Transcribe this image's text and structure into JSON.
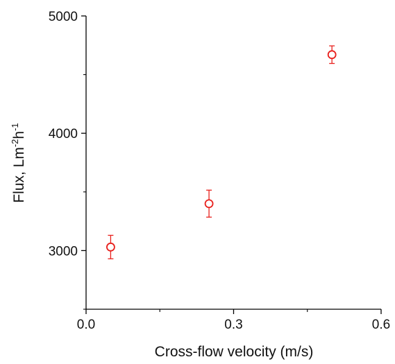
{
  "chart_data": {
    "type": "scatter",
    "xlabel": "Cross-flow velocity (m/s)",
    "ylabel": {
      "text": "Flux,  Lm",
      "sup1": "-2",
      "mid": "h",
      "sup2": "-1"
    },
    "xlim": [
      0.0,
      0.6
    ],
    "ylim": [
      2500,
      5000
    ],
    "x_ticks": [
      0.0,
      0.3,
      0.6
    ],
    "x_tick_labels": [
      "0.0",
      "0.3",
      "0.6"
    ],
    "x_minor_ticks": [
      0.15,
      0.45
    ],
    "y_ticks": [
      3000,
      4000,
      5000
    ],
    "y_tick_labels": [
      "3000",
      "4000",
      "5000"
    ],
    "y_minor_ticks": [
      2500,
      3500,
      4500
    ],
    "grid": false,
    "marker": "open-circle",
    "color": "#e8201c",
    "series": [
      {
        "points": [
          {
            "x": 0.05,
            "y": 3030,
            "err": 100
          },
          {
            "x": 0.25,
            "y": 3400,
            "err": 115
          },
          {
            "x": 0.5,
            "y": 4670,
            "err": 75
          }
        ]
      }
    ]
  }
}
